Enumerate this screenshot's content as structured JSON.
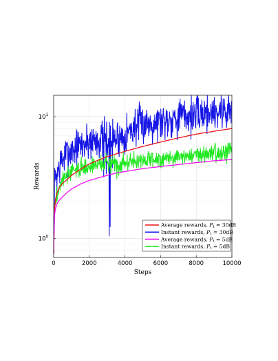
{
  "chart_data": {
    "type": "line",
    "title": "",
    "xlabel": "Steps",
    "ylabel": "Rewards",
    "xlim": [
      0,
      10000
    ],
    "ylim": [
      0.7,
      15
    ],
    "yscale": "log",
    "grid": true,
    "legend_position": "bottom-right",
    "x_ticks": [
      0,
      2000,
      4000,
      6000,
      8000,
      10000
    ],
    "x_tick_labels": [
      "0",
      "2000",
      "4000",
      "6000",
      "8000",
      "10000"
    ],
    "y_ticks": [
      1,
      10
    ],
    "y_tick_base": "10",
    "y_tick_exponents": [
      "0",
      "1"
    ],
    "series": [
      {
        "name": "Average rewards, P_t = 30dB",
        "legend_prefix": "Average rewards, ",
        "legend_symbol": "P",
        "legend_subscript": "t",
        "legend_suffix": " = 30dB",
        "color": "#e8141b",
        "style": "smooth",
        "x": [
          0,
          50,
          100,
          200,
          300,
          500,
          700,
          1000,
          1500,
          2000,
          2500,
          3000,
          3500,
          4000,
          5000,
          6000,
          7000,
          8000,
          9000,
          10000
        ],
        "y": [
          0.75,
          1.7,
          2.1,
          2.4,
          2.6,
          2.85,
          3.0,
          3.3,
          3.7,
          4.1,
          4.4,
          4.7,
          4.95,
          5.2,
          5.7,
          6.2,
          6.7,
          7.2,
          7.6,
          8.0
        ]
      },
      {
        "name": "Instant rewards, P_t = 30dB",
        "legend_prefix": "Instant rewards, ",
        "legend_symbol": "P",
        "legend_subscript": "t",
        "legend_suffix": " = 30dB",
        "color": "#1616e6",
        "style": "noisy",
        "seed": 7,
        "x": [
          0,
          50,
          100,
          200,
          400,
          700,
          1000,
          1500,
          2000,
          2500,
          3000,
          3500,
          4000,
          4500,
          5000,
          5500,
          6000,
          6500,
          7000,
          7500,
          8000,
          8500,
          9000,
          9500,
          10000
        ],
        "y": [
          1.0,
          2.6,
          3.2,
          3.4,
          4.2,
          4.9,
          5.3,
          5.8,
          6.3,
          6.5,
          6.6,
          6.6,
          7.1,
          8.2,
          8.8,
          9.0,
          9.2,
          9.6,
          10.1,
          10.1,
          10.4,
          10.8,
          11.0,
          11.1,
          11.3
        ],
        "noise": 0.18,
        "spikes": [
          {
            "x": 3120,
            "y": 1.05
          },
          {
            "x": 3160,
            "y": 1.25
          },
          {
            "x": 2800,
            "y": 3.2
          },
          {
            "x": 2950,
            "y": 3.4
          },
          {
            "x": 3300,
            "y": 3.8
          }
        ]
      },
      {
        "name": "Average rewards, P_t = 5dB",
        "legend_prefix": "Average rewards, ",
        "legend_symbol": "P",
        "legend_subscript": "t",
        "legend_suffix": " = 5dB",
        "color": "#f010f0",
        "style": "smooth",
        "x": [
          0,
          50,
          100,
          200,
          300,
          500,
          700,
          1000,
          1500,
          2000,
          2500,
          3000,
          3500,
          4000,
          5000,
          6000,
          7000,
          8000,
          9000,
          10000
        ],
        "y": [
          0.75,
          1.55,
          1.75,
          1.95,
          2.05,
          2.2,
          2.35,
          2.55,
          2.8,
          3.0,
          3.15,
          3.3,
          3.45,
          3.55,
          3.75,
          3.9,
          4.05,
          4.2,
          4.35,
          4.45
        ]
      },
      {
        "name": "Instant rewards, P_t = 5dB",
        "legend_prefix": "Instant rewards, ",
        "legend_symbol": "P",
        "legend_subscript": "t",
        "legend_suffix": " = 5dB",
        "color": "#22e822",
        "style": "noisy",
        "seed": 3,
        "x": [
          0,
          50,
          100,
          200,
          400,
          700,
          1000,
          1500,
          2000,
          2500,
          3000,
          3500,
          4000,
          4500,
          5000,
          5500,
          6000,
          6500,
          7000,
          7500,
          8000,
          8500,
          9000,
          9500,
          10000
        ],
        "y": [
          0.75,
          1.6,
          2.0,
          2.3,
          2.9,
          3.3,
          3.5,
          3.8,
          3.9,
          4.1,
          4.15,
          4.2,
          4.2,
          4.3,
          4.4,
          4.5,
          4.5,
          4.6,
          4.7,
          4.8,
          4.9,
          5.0,
          5.1,
          5.2,
          5.3
        ],
        "noise": 0.08,
        "spikes": [
          {
            "x": 3550,
            "y": 3.1
          },
          {
            "x": 3650,
            "y": 3.3
          },
          {
            "x": 9100,
            "y": 4.2
          },
          {
            "x": 9700,
            "y": 4.1
          }
        ]
      }
    ]
  }
}
